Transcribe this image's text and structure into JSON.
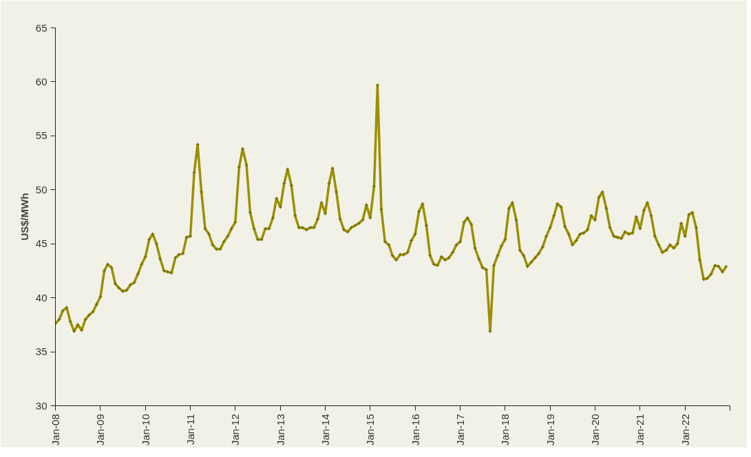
{
  "chart_data": {
    "type": "line",
    "ylabel": "US$/MWh",
    "x": [
      "2008-01",
      "2008-02",
      "2008-03",
      "2008-04",
      "2008-05",
      "2008-06",
      "2008-07",
      "2008-08",
      "2008-09",
      "2008-10",
      "2008-11",
      "2008-12",
      "2009-01",
      "2009-02",
      "2009-03",
      "2009-04",
      "2009-05",
      "2009-06",
      "2009-07",
      "2009-08",
      "2009-09",
      "2009-10",
      "2009-11",
      "2009-12",
      "2010-01",
      "2010-02",
      "2010-03",
      "2010-04",
      "2010-05",
      "2010-06",
      "2010-07",
      "2010-08",
      "2010-09",
      "2010-10",
      "2010-11",
      "2010-12",
      "2011-01",
      "2011-02",
      "2011-03",
      "2011-04",
      "2011-05",
      "2011-06",
      "2011-07",
      "2011-08",
      "2011-09",
      "2011-10",
      "2011-11",
      "2011-12",
      "2012-01",
      "2012-02",
      "2012-03",
      "2012-04",
      "2012-05",
      "2012-06",
      "2012-07",
      "2012-08",
      "2012-09",
      "2012-10",
      "2012-11",
      "2012-12",
      "2013-01",
      "2013-02",
      "2013-03",
      "2013-04",
      "2013-05",
      "2013-06",
      "2013-07",
      "2013-08",
      "2013-09",
      "2013-10",
      "2013-11",
      "2013-12",
      "2014-01",
      "2014-02",
      "2014-03",
      "2014-04",
      "2014-05",
      "2014-06",
      "2014-07",
      "2014-08",
      "2014-09",
      "2014-10",
      "2014-11",
      "2014-12",
      "2015-01",
      "2015-02",
      "2015-03",
      "2015-04",
      "2015-05",
      "2015-06",
      "2015-07",
      "2015-08",
      "2015-09",
      "2015-10",
      "2015-11",
      "2015-12",
      "2016-01",
      "2016-02",
      "2016-03",
      "2016-04",
      "2016-05",
      "2016-06",
      "2016-07",
      "2016-08",
      "2016-09",
      "2016-10",
      "2016-11",
      "2016-12",
      "2017-01",
      "2017-02",
      "2017-03",
      "2017-04",
      "2017-05",
      "2017-06",
      "2017-07",
      "2017-08",
      "2017-09",
      "2017-10",
      "2017-11",
      "2017-12",
      "2018-01",
      "2018-02",
      "2018-03",
      "2018-04",
      "2018-05",
      "2018-06",
      "2018-07",
      "2018-08",
      "2018-09",
      "2018-10",
      "2018-11",
      "2018-12",
      "2019-01",
      "2019-02",
      "2019-03",
      "2019-04",
      "2019-05",
      "2019-06",
      "2019-07",
      "2019-08",
      "2019-09",
      "2019-10",
      "2019-11",
      "2019-12",
      "2020-01",
      "2020-02",
      "2020-03",
      "2020-04",
      "2020-05",
      "2020-06",
      "2020-07",
      "2020-08",
      "2020-09",
      "2020-10",
      "2020-11",
      "2020-12",
      "2021-01",
      "2021-02",
      "2021-03",
      "2021-04",
      "2021-05",
      "2021-06",
      "2021-07",
      "2021-08",
      "2021-09",
      "2021-10",
      "2021-11",
      "2021-12",
      "2022-01",
      "2022-02",
      "2022-03",
      "2022-04",
      "2022-05",
      "2022-06",
      "2022-07",
      "2022-08",
      "2022-09",
      "2022-10",
      "2022-11",
      "2022-12"
    ],
    "series": [
      {
        "color": "#9a9000",
        "values": [
          37.6,
          38.0,
          38.8,
          39.1,
          37.8,
          36.9,
          37.5,
          37.0,
          38.0,
          38.4,
          38.7,
          39.4,
          40.1,
          42.5,
          43.1,
          42.8,
          41.3,
          40.9,
          40.6,
          40.7,
          41.2,
          41.4,
          42.2,
          43.1,
          43.8,
          45.4,
          45.9,
          45.0,
          43.6,
          42.5,
          42.4,
          42.3,
          43.7,
          44.0,
          44.1,
          45.6,
          45.7,
          51.6,
          54.2,
          49.8,
          46.4,
          45.9,
          44.9,
          44.5,
          44.5,
          45.2,
          45.7,
          46.4,
          47.0,
          52.1,
          53.8,
          52.3,
          47.9,
          46.4,
          45.4,
          45.4,
          46.4,
          46.4,
          47.4,
          49.2,
          48.4,
          50.6,
          51.9,
          50.4,
          47.6,
          46.5,
          46.5,
          46.3,
          46.5,
          46.5,
          47.3,
          48.8,
          47.8,
          50.6,
          52.0,
          49.8,
          47.3,
          46.3,
          46.1,
          46.5,
          46.7,
          46.9,
          47.2,
          48.6,
          47.4,
          50.3,
          59.7,
          48.2,
          45.2,
          44.9,
          43.9,
          43.5,
          44.0,
          44.0,
          44.2,
          45.3,
          45.9,
          48.0,
          48.7,
          46.7,
          43.9,
          43.1,
          43.0,
          43.8,
          43.5,
          43.7,
          44.2,
          44.9,
          45.2,
          47.0,
          47.4,
          46.8,
          44.6,
          43.6,
          42.8,
          42.6,
          36.9,
          43.0,
          43.9,
          44.8,
          45.4,
          48.3,
          48.8,
          47.2,
          44.4,
          43.9,
          42.9,
          43.3,
          43.7,
          44.1,
          44.7,
          45.7,
          46.5,
          47.6,
          48.7,
          48.4,
          46.6,
          45.9,
          44.9,
          45.3,
          45.9,
          46.0,
          46.3,
          47.6,
          47.2,
          49.3,
          49.8,
          48.3,
          46.5,
          45.7,
          45.6,
          45.5,
          46.1,
          45.9,
          46.0,
          47.5,
          46.4,
          48.1,
          48.8,
          47.6,
          45.7,
          44.9,
          44.2,
          44.4,
          44.9,
          44.6,
          45.0,
          46.9,
          45.7,
          47.7,
          47.9,
          46.5,
          43.5,
          41.7,
          41.8,
          42.2,
          43.0,
          42.9,
          42.4,
          42.9
        ]
      }
    ],
    "xlim": [
      "2008-01",
      "2023-01"
    ],
    "xticks": [
      {
        "value": "2008-01",
        "label": "Jan-08"
      },
      {
        "value": "2009-01",
        "label": "Jan-09"
      },
      {
        "value": "2010-01",
        "label": "Jan-10"
      },
      {
        "value": "2011-01",
        "label": "Jan-11"
      },
      {
        "value": "2012-01",
        "label": "Jan-12"
      },
      {
        "value": "2013-01",
        "label": "Jan-13"
      },
      {
        "value": "2014-01",
        "label": "Jan-14"
      },
      {
        "value": "2015-01",
        "label": "Jan-15"
      },
      {
        "value": "2016-01",
        "label": "Jan-16"
      },
      {
        "value": "2017-01",
        "label": "Jan-17"
      },
      {
        "value": "2018-01",
        "label": "Jan-18"
      },
      {
        "value": "2019-01",
        "label": "Jan-19"
      },
      {
        "value": "2020-01",
        "label": "Jan-20"
      },
      {
        "value": "2021-01",
        "label": "Jan-21"
      },
      {
        "value": "2022-01",
        "label": "Jan-22"
      },
      {
        "value": "2023-01",
        "label": null
      }
    ],
    "ylim": [
      30,
      65
    ],
    "yticks": [
      30,
      35,
      40,
      45,
      50,
      55,
      60,
      65
    ],
    "grid": false,
    "marker": "cross",
    "line_style": "solid"
  }
}
